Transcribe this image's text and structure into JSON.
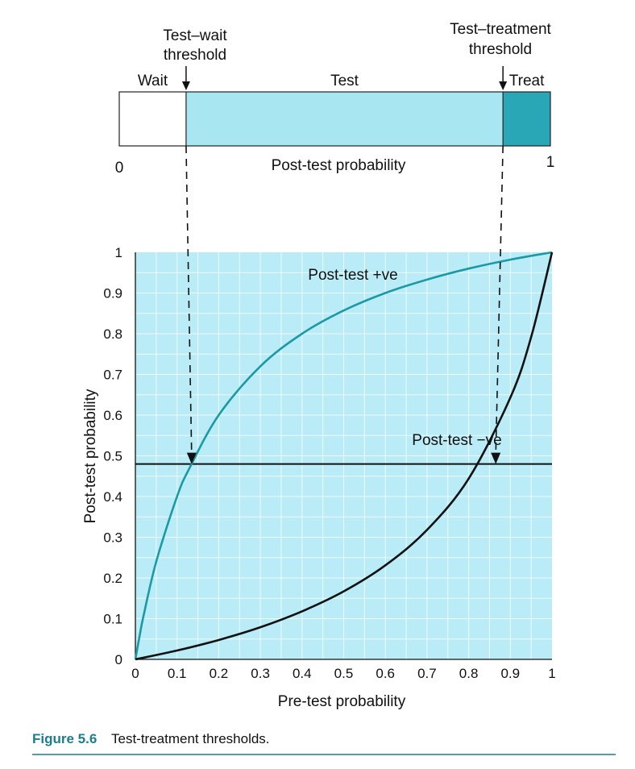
{
  "bar": {
    "left_label": "0",
    "right_label": "1",
    "axis_label": "Post-test probability",
    "test_wait_threshold": 0.155,
    "test_treatment_threshold": 0.89,
    "test_wait_label_line1": "Test–wait",
    "test_wait_label_line2": "threshold",
    "test_treatment_label_line1": "Test–treatment",
    "test_treatment_label_line2": "threshold",
    "regions": [
      {
        "name": "Wait",
        "from": 0,
        "to": 0.155,
        "color": "#ffffff"
      },
      {
        "name": "Test",
        "from": 0.155,
        "to": 0.89,
        "color": "#a8e6f2"
      },
      {
        "name": "Treat",
        "from": 0.89,
        "to": 1,
        "color": "#2aa7b6"
      }
    ]
  },
  "chart_data": {
    "type": "line",
    "xlabel": "Pre-test probability",
    "ylabel": "Post-test probability",
    "xlim": [
      0,
      1
    ],
    "ylim": [
      0,
      1
    ],
    "x_ticks": [
      "0",
      "0.1",
      "0.2",
      "0.3",
      "0.4",
      "0.5",
      "0.6",
      "0.7",
      "0.8",
      "0.9",
      "1"
    ],
    "y_ticks": [
      "0",
      "0.1",
      "0.2",
      "0.3",
      "0.4",
      "0.5",
      "0.6",
      "0.7",
      "0.8",
      "0.9",
      "1"
    ],
    "grid": true,
    "background_color": "#b9ecf6",
    "series": [
      {
        "name": "Post-test +ve",
        "color": "#1b9aa5",
        "x": [
          0,
          0.01,
          0.02,
          0.05,
          0.1,
          0.13,
          0.2,
          0.3,
          0.4,
          0.5,
          0.6,
          0.7,
          0.8,
          0.9,
          1
        ],
        "y": [
          0,
          0.057,
          0.109,
          0.24,
          0.4,
          0.47,
          0.6,
          0.72,
          0.8,
          0.857,
          0.9,
          0.933,
          0.96,
          0.982,
          1
        ]
      },
      {
        "name": "Post-test −ve",
        "color": "#111111",
        "x": [
          0,
          0.1,
          0.2,
          0.3,
          0.4,
          0.5,
          0.6,
          0.7,
          0.8,
          0.9,
          0.95,
          1
        ],
        "y": [
          0,
          0.0217,
          0.0476,
          0.0789,
          0.118,
          0.167,
          0.231,
          0.318,
          0.444,
          0.643,
          0.792,
          1
        ]
      }
    ],
    "threshold_line_y": 0.48,
    "arrow_targets": [
      {
        "x": 0.135,
        "y": 0.48
      },
      {
        "x": 0.865,
        "y": 0.48
      }
    ]
  },
  "caption": {
    "figure_number": "Figure 5.6",
    "text": "Test-treatment thresholds."
  },
  "colors": {
    "accent": "#1a7f8c",
    "test_fill": "#a8e6f2",
    "treat_fill": "#2aa7b6"
  }
}
